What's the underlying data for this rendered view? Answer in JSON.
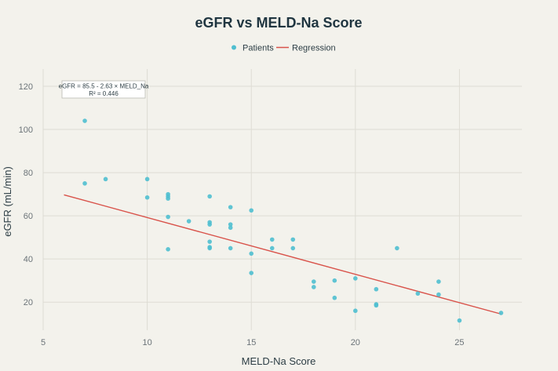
{
  "chart_data": {
    "type": "scatter",
    "title": "eGFR vs MELD-Na Score",
    "xlabel": "MELD-Na Score",
    "ylabel": "eGFR (mL/min)",
    "xlim": [
      5,
      28
    ],
    "ylim": [
      7,
      128
    ],
    "xticks": [
      5,
      10,
      15,
      20,
      25
    ],
    "yticks": [
      20,
      40,
      60,
      80,
      100,
      120
    ],
    "grid": true,
    "legend_position": "top-center",
    "series": [
      {
        "name": "Patients",
        "kind": "scatter",
        "color": "#4fbfd0",
        "x": [
          7,
          7,
          8,
          10,
          10,
          11,
          11,
          11,
          11,
          11,
          12,
          13,
          13,
          13,
          13,
          13,
          13,
          14,
          14,
          14,
          14,
          15,
          15,
          15,
          16,
          16,
          17,
          17,
          18,
          18,
          19,
          19,
          20,
          20,
          21,
          21,
          21,
          22,
          23,
          24,
          24,
          25,
          27
        ],
        "y": [
          104,
          75,
          77,
          77,
          68.5,
          70,
          69,
          68,
          59.5,
          44.5,
          57.5,
          69,
          57,
          56,
          48,
          45.5,
          45,
          64,
          56,
          54.5,
          45,
          62.5,
          42.5,
          33.5,
          49,
          45,
          49,
          45,
          29.5,
          27,
          30,
          22,
          31,
          16,
          26,
          19,
          18.5,
          45,
          24,
          29.5,
          23.5,
          11.5,
          15
        ]
      },
      {
        "name": "Regression",
        "kind": "line",
        "color": "#d9524a",
        "x": [
          6,
          27
        ],
        "y": [
          69.72,
          14.49
        ]
      }
    ],
    "annotation": {
      "line1": "eGFR = 85.5 - 2.63 × MELD_Na",
      "line2": "R² = 0.446"
    }
  }
}
